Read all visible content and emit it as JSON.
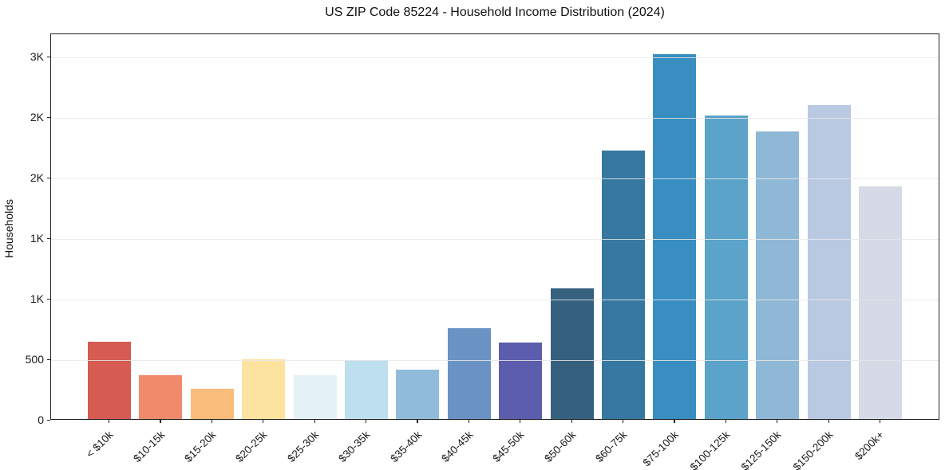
{
  "chart_data": {
    "type": "bar",
    "title": "US ZIP Code 85224 - Household Income Distribution (2024)",
    "xlabel": "",
    "ylabel": "Households",
    "categories": [
      "< $10k",
      "$10-15k",
      "$15-20k",
      "$20-25k",
      "$25-30k",
      "$30-35k",
      "$35-40k",
      "$40-45k",
      "$45-50k",
      "$50-60k",
      "$60-75k",
      "$75-100k",
      "$100-125k",
      "$125-150k",
      "$150-200k",
      "$200k+"
    ],
    "values": [
      640,
      360,
      250,
      495,
      365,
      490,
      405,
      750,
      630,
      1080,
      2215,
      3010,
      2505,
      2375,
      2590,
      1920
    ],
    "bar_colors": [
      "#d65b52",
      "#f18a6b",
      "#fabc7b",
      "#fde3a0",
      "#e4f1f6",
      "#bedfed",
      "#91bcd9",
      "#6a93c4",
      "#5c5dad",
      "#35617f",
      "#36789f",
      "#388dc1",
      "#5ba3c8",
      "#8fb8d6",
      "#b9c9e2",
      "#d6dae7"
    ],
    "ylim": [
      0,
      3190
    ],
    "yticks": [
      {
        "value": 0,
        "label": "0"
      },
      {
        "value": 500,
        "label": "500"
      },
      {
        "value": 1000,
        "label": "1K"
      },
      {
        "value": 1500,
        "label": "1K"
      },
      {
        "value": 2000,
        "label": "2K"
      },
      {
        "value": 2500,
        "label": "2K"
      },
      {
        "value": 3000,
        "label": "3K"
      }
    ],
    "grid": "horizontal",
    "legend": "none",
    "x_tick_rotation_deg": 45
  },
  "colors": {
    "background": "#ffffff",
    "spine": "#222222",
    "grid": "#e7e7e7",
    "text": "#111111"
  }
}
